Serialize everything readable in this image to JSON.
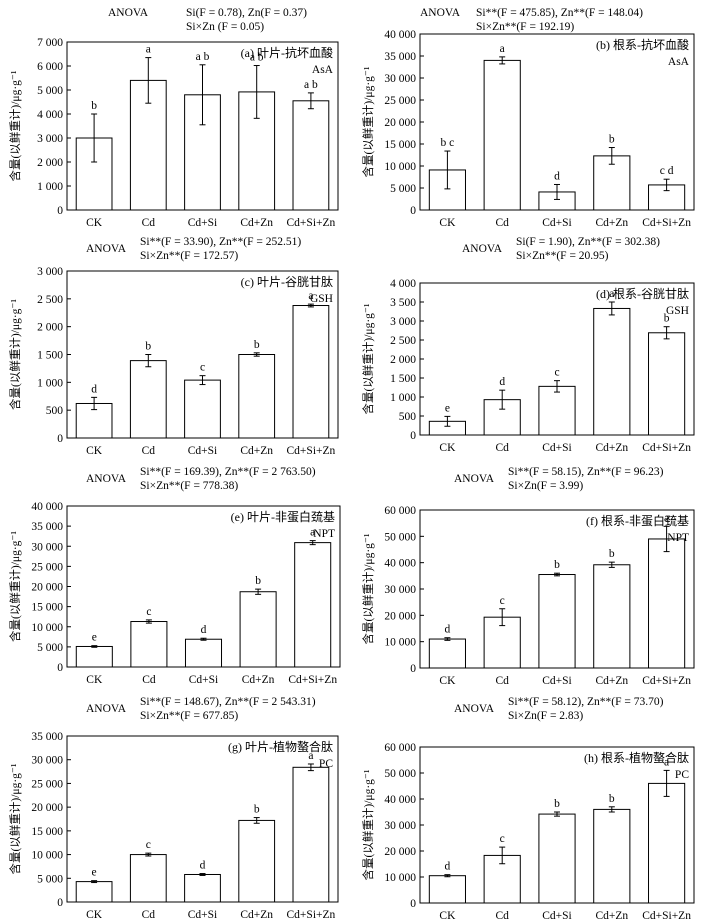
{
  "ylabel": "含量(以鲜重计)/μg·g⁻¹",
  "categories": [
    "CK",
    "Cd",
    "Cd+Si",
    "Cd+Zn",
    "Cd+Si+Zn"
  ],
  "chart_data": [
    {
      "type": "bar",
      "title": "(a) 叶片-抗坏血酸",
      "tag": "AsA",
      "anova_label": "ANOVA",
      "anova": [
        "Si(F = 0.78), Zn(F = 0.37)",
        "Si×Zn (F = 0.05)"
      ],
      "ylabel": "含量(以鲜重计)/μg·g⁻¹",
      "categories": [
        "CK",
        "Cd",
        "Cd+Si",
        "Cd+Zn",
        "Cd+Si+Zn"
      ],
      "values": [
        3000,
        5400,
        4800,
        4920,
        4550
      ],
      "errors": [
        1000,
        950,
        1250,
        1100,
        330
      ],
      "letters": [
        "b",
        "a",
        "a b",
        "a b",
        "a b"
      ],
      "ylim": [
        0,
        7000
      ],
      "ticks": [
        0,
        1000,
        2000,
        3000,
        4000,
        5000,
        6000,
        7000
      ],
      "tick_labels": [
        "0",
        "1 000",
        "2 000",
        "3 000",
        "4 000",
        "5 000",
        "6 000",
        "7 000"
      ]
    },
    {
      "type": "bar",
      "title": "(b) 根系-抗坏血酸",
      "tag": "AsA",
      "anova_label": "ANOVA",
      "anova": [
        "Si**(F = 475.85), Zn**(F = 148.04)",
        "Si×Zn**(F = 192.19)"
      ],
      "ylabel": "含量(以鲜重计)/μg·g⁻¹",
      "categories": [
        "CK",
        "Cd",
        "Cd+Si",
        "Cd+Zn",
        "Cd+Si+Zn"
      ],
      "values": [
        9100,
        34000,
        4100,
        12300,
        5700
      ],
      "errors": [
        4300,
        800,
        1700,
        1900,
        1300
      ],
      "letters": [
        "b c",
        "a",
        "d",
        "b",
        "c d"
      ],
      "ylim": [
        0,
        40000
      ],
      "ticks": [
        0,
        5000,
        10000,
        15000,
        20000,
        25000,
        30000,
        35000,
        40000
      ],
      "tick_labels": [
        "0",
        "5 000",
        "10 000",
        "15 000",
        "20 000",
        "25 000",
        "30 000",
        "35 000",
        "40 000"
      ]
    },
    {
      "type": "bar",
      "title": "(c) 叶片-谷胱甘肽",
      "tag": "GSH",
      "anova_label": "ANOVA",
      "anova": [
        "Si**(F = 33.90), Zn**(F = 252.51)",
        "Si×Zn**(F = 172.57)"
      ],
      "ylabel": "含量(以鲜重计)/μg·g⁻¹",
      "categories": [
        "CK",
        "Cd",
        "Cd+Si",
        "Cd+Zn",
        "Cd+Si+Zn"
      ],
      "values": [
        620,
        1390,
        1040,
        1500,
        2380
      ],
      "errors": [
        110,
        110,
        80,
        30,
        25
      ],
      "letters": [
        "d",
        "b",
        "c",
        "b",
        "a"
      ],
      "ylim": [
        0,
        3000
      ],
      "ticks": [
        0,
        500,
        1000,
        1500,
        2000,
        2500,
        3000
      ],
      "tick_labels": [
        "0",
        "500",
        "1 000",
        "1 500",
        "2 000",
        "2 500",
        "3 000"
      ]
    },
    {
      "type": "bar",
      "title": "(d) 根系-谷胱甘肽",
      "tag": "GSH",
      "anova_label": "ANOVA",
      "anova": [
        "Si(F = 1.90), Zn**(F = 302.38)",
        "Si×Zn**(F = 20.95)"
      ],
      "ylabel": "含量(以鲜重计)/μg·g⁻¹",
      "categories": [
        "CK",
        "Cd",
        "Cd+Si",
        "Cd+Zn",
        "Cd+Si+Zn"
      ],
      "values": [
        360,
        930,
        1280,
        3330,
        2690
      ],
      "errors": [
        130,
        250,
        150,
        170,
        160
      ],
      "letters": [
        "e",
        "d",
        "c",
        "a",
        "b"
      ],
      "ylim": [
        0,
        4000
      ],
      "ticks": [
        0,
        500,
        1000,
        1500,
        2000,
        2500,
        3000,
        3500,
        4000
      ],
      "tick_labels": [
        "0",
        "500",
        "1 000",
        "1 500",
        "2 000",
        "2 500",
        "3 000",
        "3 500",
        "4 000"
      ]
    },
    {
      "type": "bar",
      "title": "(e) 叶片-非蛋白巯基",
      "tag": "NPT",
      "anova_label": "ANOVA",
      "anova": [
        "Si**(F = 169.39), Zn**(F = 2 763.50)",
        "Si×Zn**(F = 778.38)"
      ],
      "ylabel": "含量(以鲜重计)/μg·g⁻¹",
      "categories": [
        "CK",
        "Cd",
        "Cd+Si",
        "Cd+Zn",
        "Cd+Si+Zn"
      ],
      "values": [
        5100,
        11300,
        6900,
        18700,
        30900
      ],
      "errors": [
        200,
        400,
        250,
        650,
        500
      ],
      "letters": [
        "e",
        "c",
        "d",
        "b",
        "a"
      ],
      "ylim": [
        0,
        40000
      ],
      "ticks": [
        0,
        5000,
        10000,
        15000,
        20000,
        25000,
        30000,
        35000,
        40000
      ],
      "tick_labels": [
        "0",
        "5 000",
        "10 000",
        "15 000",
        "20 000",
        "25 000",
        "30 000",
        "35 000",
        "40 000"
      ]
    },
    {
      "type": "bar",
      "title": "(f) 根系-非蛋白巯基",
      "tag": "NPT",
      "anova_label": "ANOVA",
      "anova": [
        "Si**(F = 58.15), Zn**(F = 96.23)",
        "Si×Zn(F = 3.99)"
      ],
      "ylabel": "含量(以鲜重计)/μg·g⁻¹",
      "categories": [
        "CK",
        "Cd",
        "Cd+Si",
        "Cd+Zn",
        "Cd+Si+Zn"
      ],
      "values": [
        11000,
        19300,
        35500,
        39200,
        49000
      ],
      "errors": [
        500,
        3200,
        500,
        1000,
        4800
      ],
      "letters": [
        "d",
        "c",
        "b",
        "b",
        "a"
      ],
      "ylim": [
        0,
        60000
      ],
      "ticks": [
        0,
        10000,
        20000,
        30000,
        40000,
        50000,
        60000
      ],
      "tick_labels": [
        "0",
        "10 000",
        "20 000",
        "30 000",
        "40 000",
        "50 000",
        "60 000"
      ]
    },
    {
      "type": "bar",
      "title": "(g) 叶片-植物螯合肽",
      "tag": "PC",
      "anova_label": "ANOVA",
      "anova": [
        "Si**(F = 148.67), Zn**(F = 2 543.31)",
        "Si×Zn**(F = 677.85)"
      ],
      "ylabel": "含量(以鲜重计)/μg·g⁻¹",
      "categories": [
        "CK",
        "Cd",
        "Cd+Si",
        "Cd+Zn",
        "Cd+Si+Zn"
      ],
      "values": [
        4300,
        10000,
        5800,
        17200,
        28400
      ],
      "errors": [
        200,
        300,
        200,
        600,
        700
      ],
      "letters": [
        "e",
        "c",
        "d",
        "b",
        "a"
      ],
      "ylim": [
        0,
        35000
      ],
      "ticks": [
        0,
        5000,
        10000,
        15000,
        20000,
        25000,
        30000,
        35000
      ],
      "tick_labels": [
        "0",
        "5 000",
        "10 000",
        "15 000",
        "20 000",
        "25 000",
        "30 000",
        "35 000"
      ]
    },
    {
      "type": "bar",
      "title": "(h) 根系-植物螯合肽",
      "tag": "PC",
      "anova_label": "ANOVA",
      "anova": [
        "Si**(F = 58.12), Zn**(F = 73.70)",
        "Si×Zn(F = 2.83)"
      ],
      "ylabel": "含量(以鲜重计)/μg·g⁻¹",
      "categories": [
        "CK",
        "Cd",
        "Cd+Si",
        "Cd+Zn",
        "Cd+Si+Zn"
      ],
      "values": [
        10500,
        18300,
        34200,
        36000,
        46000
      ],
      "errors": [
        400,
        3200,
        800,
        1000,
        5000
      ],
      "letters": [
        "d",
        "c",
        "b",
        "b",
        "a"
      ],
      "ylim": [
        0,
        60000
      ],
      "ticks": [
        0,
        10000,
        20000,
        30000,
        40000,
        50000,
        60000
      ],
      "tick_labels": [
        "0",
        "10 000",
        "20 000",
        "30 000",
        "40 000",
        "50 000",
        "60 000"
      ]
    }
  ]
}
